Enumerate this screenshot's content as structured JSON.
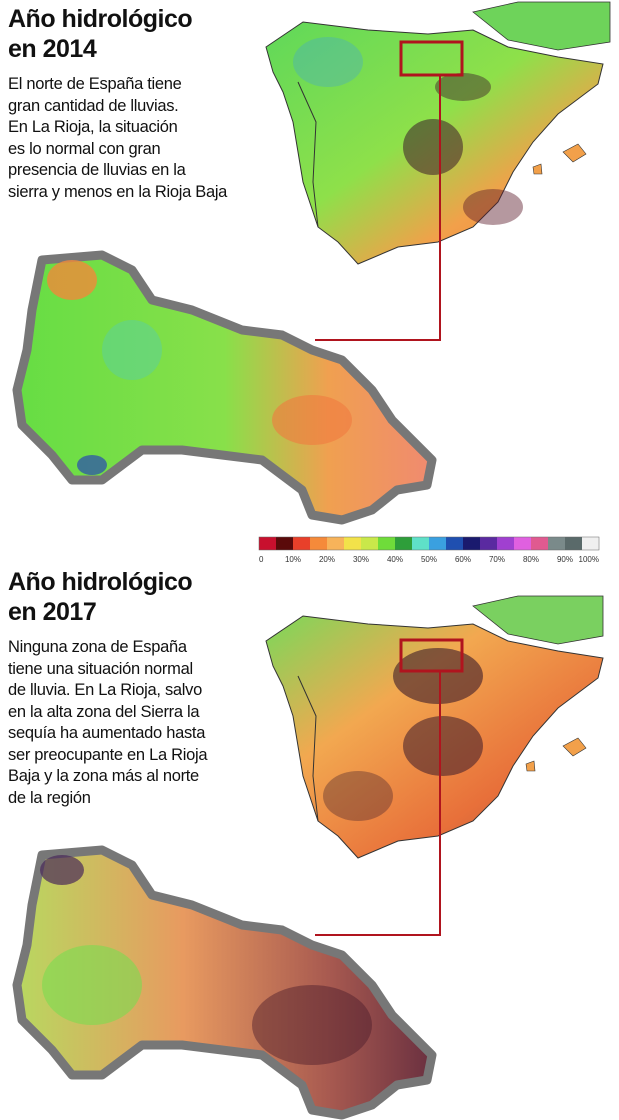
{
  "panels": [
    {
      "title": [
        "Año hidrológico",
        "en 2014"
      ],
      "body": [
        "El norte de España tiene",
        "gran cantidad de lluvias.",
        "En La Rioja, la situación",
        "es lo normal con gran",
        "presencia de lluvias en la",
        "sierra y menos en la Rioja Baja"
      ]
    },
    {
      "title": [
        "Año hidrológico",
        "en 2017"
      ],
      "body": [
        "Ninguna zona de España",
        "tiene una situación normal",
        "de lluvia. En La Rioja, salvo",
        "en la alta zona del Sierra la",
        "sequía ha aumentado hasta",
        "ser preocupante en La Rioja",
        "Baja y la zona más al norte",
        "de la región"
      ]
    }
  ],
  "legend": {
    "colors": [
      "#c8102e",
      "#5a0a0a",
      "#e8402a",
      "#f58a3a",
      "#f7b35a",
      "#f2e24a",
      "#c9e84a",
      "#6fdc3a",
      "#2e9e3a",
      "#5fe0c8",
      "#3aa0e0",
      "#1f4fb0",
      "#1a1a6e",
      "#5a2aa0",
      "#a040d0",
      "#e060e0",
      "#e05a90",
      "#7a8a8a",
      "#5a6a6a",
      "#f0f0f0"
    ],
    "labels": [
      "0",
      "10%",
      "20%",
      "30%",
      "40%",
      "50%",
      "60%",
      "70%",
      "80%",
      "90%",
      "100%"
    ]
  }
}
